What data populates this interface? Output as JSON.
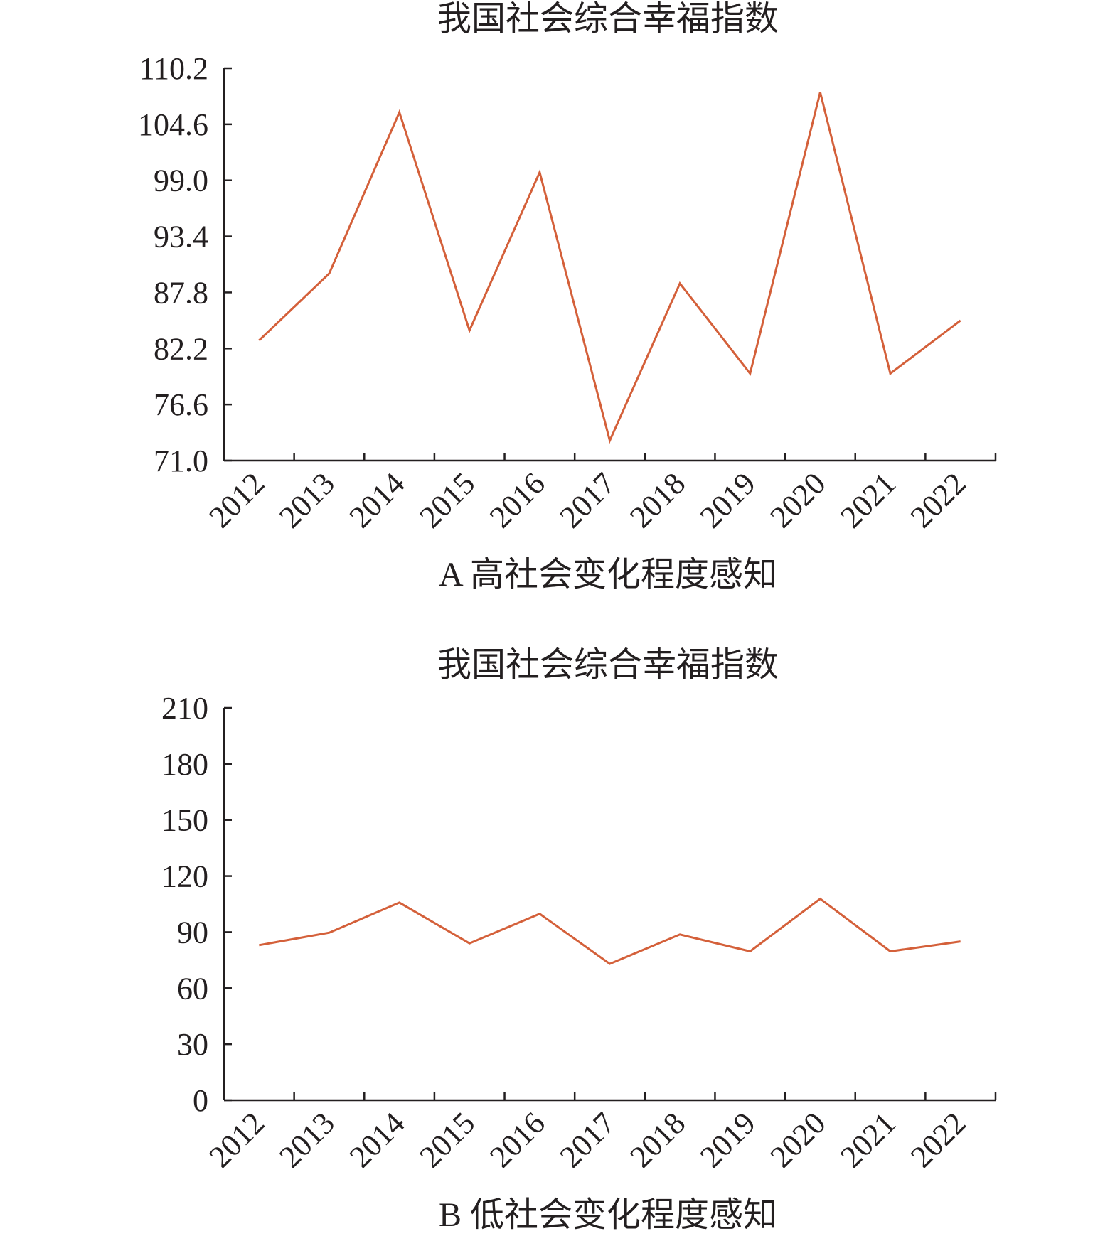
{
  "chart_data": [
    {
      "type": "line",
      "title": "我国社会综合幸福指数",
      "caption": "A 高社会变化程度感知",
      "categories": [
        "2012",
        "2013",
        "2014",
        "2015",
        "2016",
        "2017",
        "2018",
        "2019",
        "2020",
        "2021",
        "2022"
      ],
      "y_ticks": [
        "71.0",
        "76.6",
        "82.2",
        "87.8",
        "93.4",
        "99.0",
        "104.6",
        "110.2"
      ],
      "ylim": [
        71.0,
        110.2
      ],
      "series": [
        {
          "color": "#d4603a",
          "values": [
            83.0,
            89.7,
            105.8,
            84.0,
            99.8,
            73.0,
            88.7,
            79.7,
            107.8,
            79.7,
            85.0
          ]
        }
      ],
      "grid": false,
      "legend": "none"
    },
    {
      "type": "line",
      "title": "我国社会综合幸福指数",
      "caption": "B 低社会变化程度感知",
      "categories": [
        "2012",
        "2013",
        "2014",
        "2015",
        "2016",
        "2017",
        "2018",
        "2019",
        "2020",
        "2021",
        "2022"
      ],
      "y_ticks": [
        "0",
        "30",
        "60",
        "90",
        "120",
        "150",
        "180",
        "210"
      ],
      "ylim": [
        0,
        210
      ],
      "series": [
        {
          "color": "#d4603a",
          "values": [
            83.0,
            89.7,
            105.8,
            84.0,
            99.8,
            73.0,
            88.7,
            79.7,
            107.8,
            79.7,
            85.0
          ]
        }
      ],
      "grid": false,
      "legend": "none"
    }
  ]
}
